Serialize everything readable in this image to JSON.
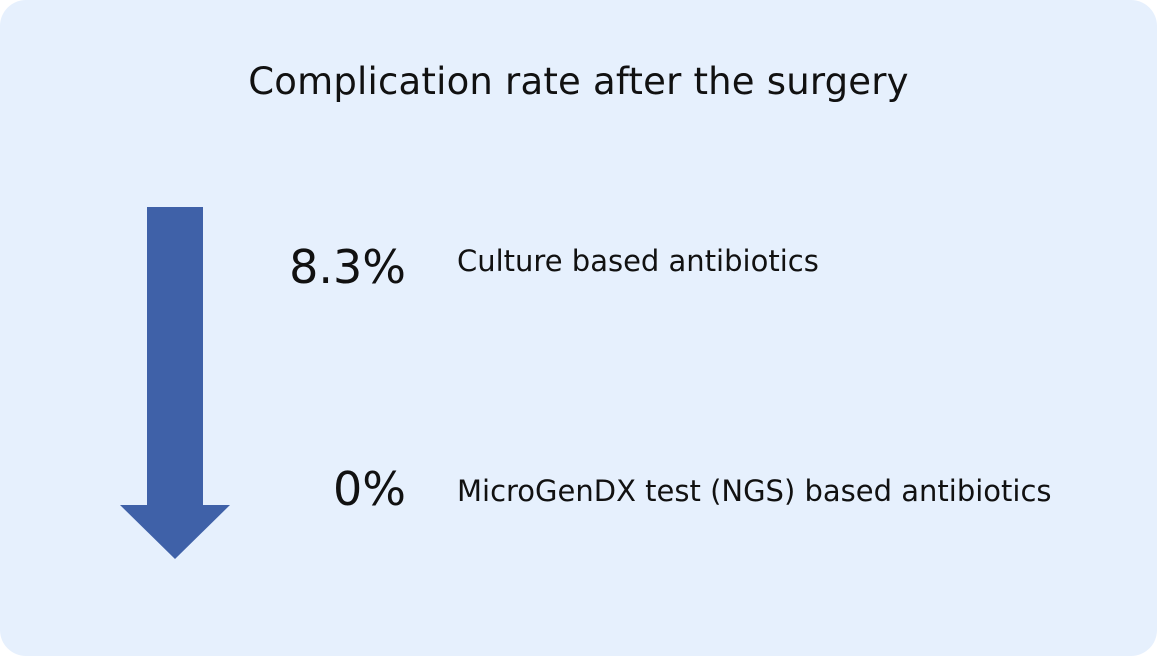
{
  "title": "Complication rate after the surgery",
  "colors": {
    "card_background": "#e6f0fd",
    "arrow": "#3f61a8",
    "text": "#111111"
  },
  "icon": "down-arrow-icon",
  "rows": [
    {
      "value": "8.3%",
      "label": "Culture based antibiotics"
    },
    {
      "value": "0%",
      "label": "MicroGenDX test (NGS) based antibiotics"
    }
  ]
}
